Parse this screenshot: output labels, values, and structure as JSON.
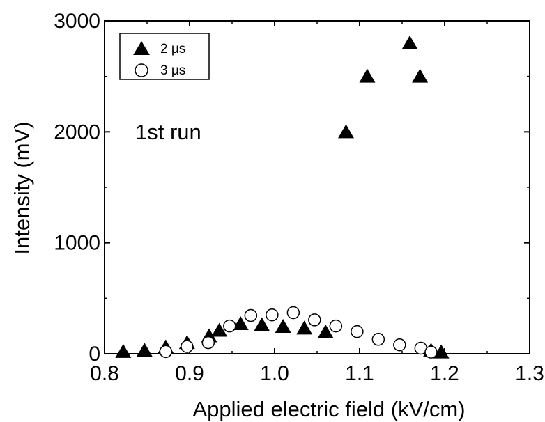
{
  "chart_data": {
    "type": "scatter",
    "xlabel": "Applied electric field (kV/cm)",
    "ylabel": "Intensity (mV)",
    "xlim": [
      0.8,
      1.3
    ],
    "ylim": [
      0,
      3000
    ],
    "x_ticks": [
      "0.8",
      "0.9",
      "1.0",
      "1.1",
      "1.2",
      "1.3"
    ],
    "y_ticks": [
      "0",
      "1000",
      "2000",
      "3000"
    ],
    "x_tick_values": [
      0.8,
      0.9,
      1.0,
      1.1,
      1.2,
      1.3
    ],
    "y_tick_values": [
      0,
      1000,
      2000,
      3000
    ],
    "grid": false,
    "legend_position": "top-left",
    "annotation": "1st run",
    "series": [
      {
        "name": "2 μs",
        "marker": "filled-triangle",
        "color": "#000000",
        "points": [
          [
            0.822,
            20
          ],
          [
            0.847,
            30
          ],
          [
            0.872,
            60
          ],
          [
            0.897,
            100
          ],
          [
            0.923,
            160
          ],
          [
            0.935,
            210
          ],
          [
            0.96,
            270
          ],
          [
            0.985,
            260
          ],
          [
            1.01,
            245
          ],
          [
            1.035,
            230
          ],
          [
            1.06,
            195
          ],
          [
            1.084,
            2000
          ],
          [
            1.109,
            2500
          ],
          [
            1.159,
            2800
          ],
          [
            1.171,
            2500
          ],
          [
            1.184,
            30
          ],
          [
            1.196,
            15
          ]
        ]
      },
      {
        "name": "3 μs",
        "marker": "open-circle",
        "color": "#000000",
        "points": [
          [
            0.872,
            20
          ],
          [
            0.897,
            65
          ],
          [
            0.922,
            100
          ],
          [
            0.947,
            250
          ],
          [
            0.972,
            345
          ],
          [
            0.997,
            350
          ],
          [
            1.022,
            370
          ],
          [
            1.047,
            305
          ],
          [
            1.072,
            250
          ],
          [
            1.097,
            200
          ],
          [
            1.122,
            130
          ],
          [
            1.147,
            80
          ],
          [
            1.172,
            50
          ],
          [
            1.184,
            15
          ]
        ]
      }
    ]
  }
}
